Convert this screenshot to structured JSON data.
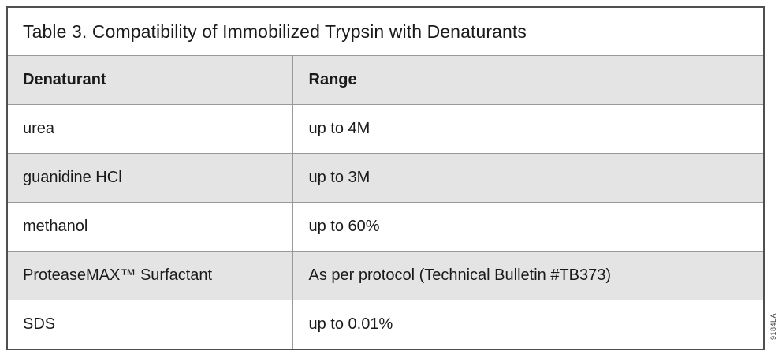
{
  "title": "Table 3. Compatibility of Immobilized Trypsin with Denaturants",
  "table": {
    "columns": [
      "Denaturant",
      "Range"
    ],
    "rows": [
      {
        "denaturant": "urea",
        "range": "up to 4M"
      },
      {
        "denaturant": "guanidine HCl",
        "range": "up to 3M"
      },
      {
        "denaturant": "methanol",
        "range": "up to 60%"
      },
      {
        "denaturant": "ProteaseMAX™ Surfactant",
        "range": "As per protocol (Technical Bulletin #TB373)"
      },
      {
        "denaturant": "SDS",
        "range": "up to 0.01%"
      }
    ]
  },
  "side_code": "9184LA",
  "colors": {
    "row_alt_background": "#e4e4e4",
    "inner_border": "#999999",
    "outer_border": "#4f4f4f",
    "text": "#1a1a1a"
  }
}
